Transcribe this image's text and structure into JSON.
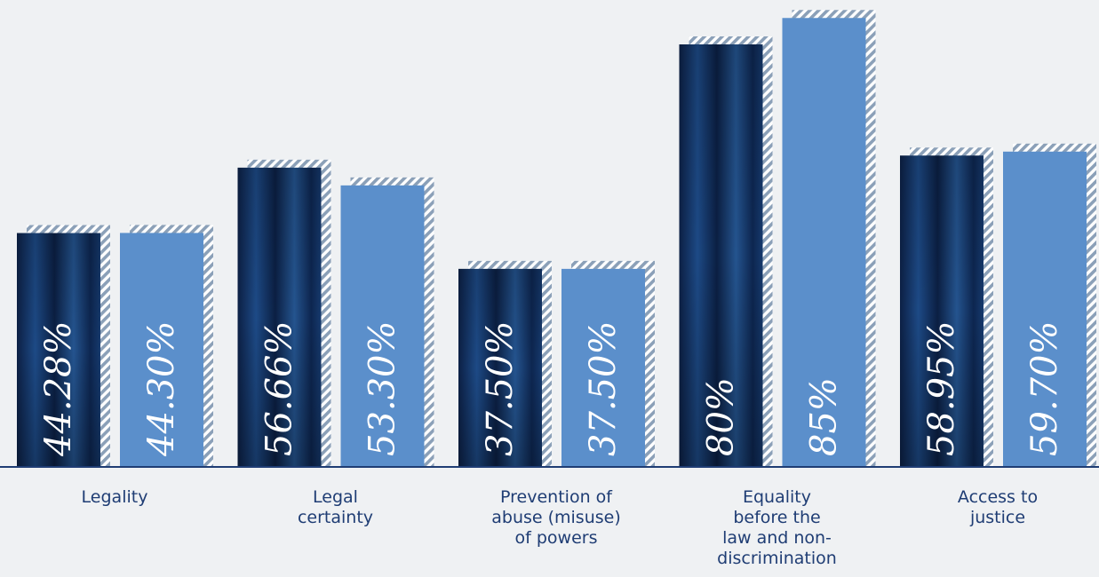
{
  "chart_data": {
    "type": "bar",
    "categories": [
      [
        "Legality"
      ],
      [
        "Legal",
        "certainty"
      ],
      [
        "Prevention of",
        "abuse (misuse)",
        "of powers"
      ],
      [
        "Equality",
        "before the",
        "law and non-",
        "discrimination"
      ],
      [
        "Access to",
        "justice"
      ]
    ],
    "series": [
      {
        "values": [
          44.28,
          56.66,
          37.5,
          80,
          58.95
        ],
        "labels": [
          "44.28%",
          "56.66%",
          "37.50%",
          "80%",
          "58.95%"
        ]
      },
      {
        "values": [
          44.3,
          53.3,
          37.5,
          85,
          59.7
        ],
        "labels": [
          "44.30%",
          "53.30%",
          "37.50%",
          "85%",
          "59.70%"
        ]
      }
    ],
    "ylim": [
      0,
      100
    ],
    "grid": false,
    "legend": "none"
  },
  "colors": {
    "background": "#eff1f3",
    "series_1": "#0f2a52",
    "series_2": "#5b8fcb",
    "hatch": "#8ba0b8",
    "axis": "#1f3d74",
    "label_text": "#1f3d74",
    "value_text": "#ffffff"
  }
}
